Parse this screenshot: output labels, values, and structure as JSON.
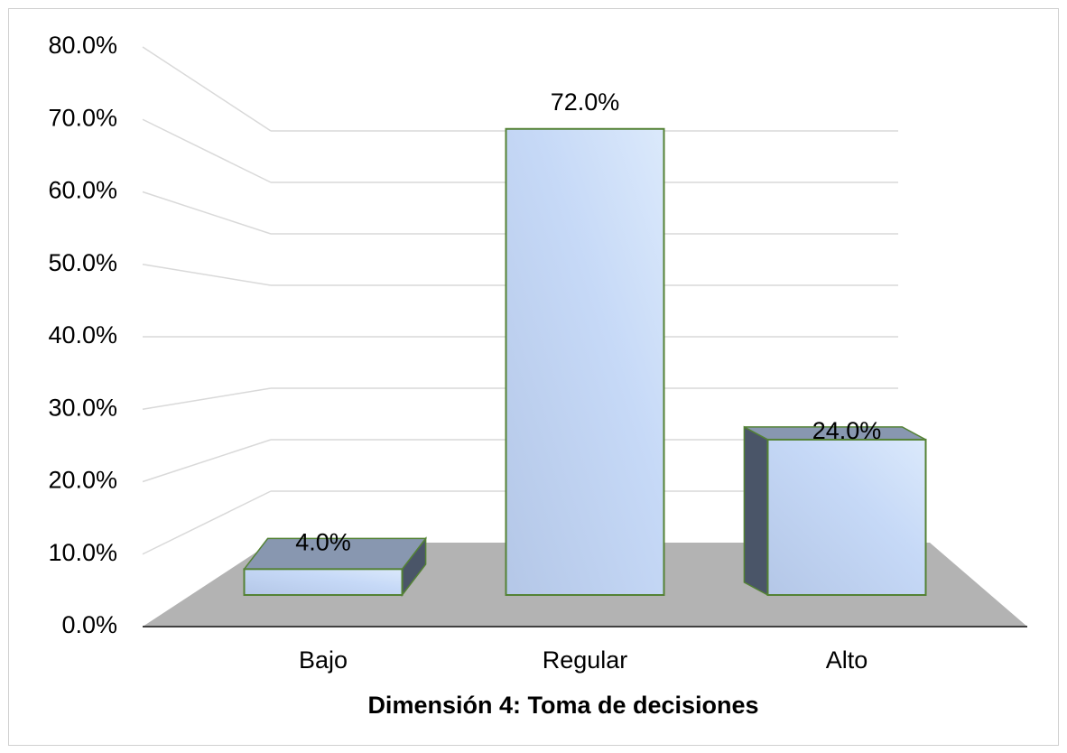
{
  "chart_data": {
    "type": "bar3d",
    "x_label": "Dimensión 4: Toma de decisiones",
    "categories": [
      "Bajo",
      "Regular",
      "Alto"
    ],
    "values": [
      4,
      72,
      24
    ],
    "value_labels": [
      "4.0%",
      "72.0%",
      "24.0%"
    ],
    "color": "#b9cbeb",
    "ylim": [
      0,
      80
    ],
    "yticks": [
      {
        "value": 0,
        "label": "0.0%"
      },
      {
        "value": 10,
        "label": "10.0%"
      },
      {
        "value": 20,
        "label": "20.0%"
      },
      {
        "value": 30,
        "label": "30.0%"
      },
      {
        "value": 40,
        "label": "40.0%"
      },
      {
        "value": 50,
        "label": "50.0%"
      },
      {
        "value": 60,
        "label": "60.0%"
      },
      {
        "value": 70,
        "label": "70.0%"
      },
      {
        "value": 80,
        "label": "80.0%"
      }
    ],
    "grid": true
  }
}
